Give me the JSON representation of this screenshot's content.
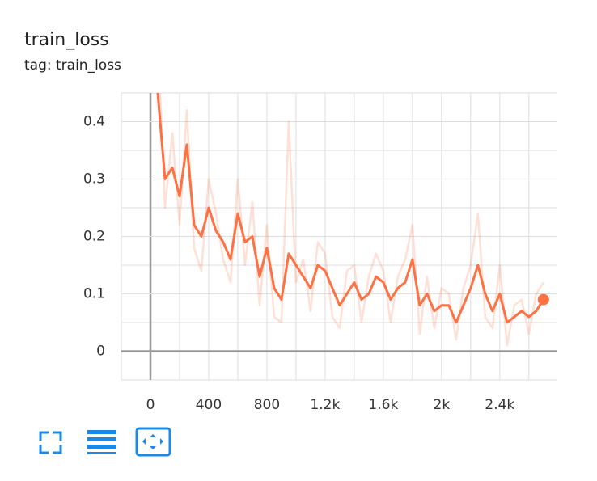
{
  "chart_data": {
    "type": "line",
    "title": "train_loss",
    "subtitle": "tag: train_loss",
    "x": [
      50,
      100,
      150,
      200,
      250,
      300,
      350,
      400,
      450,
      500,
      550,
      600,
      650,
      700,
      750,
      800,
      850,
      900,
      950,
      1000,
      1050,
      1100,
      1150,
      1200,
      1250,
      1300,
      1350,
      1400,
      1450,
      1500,
      1550,
      1600,
      1650,
      1700,
      1750,
      1800,
      1850,
      1900,
      1950,
      2000,
      2050,
      2100,
      2150,
      2200,
      2250,
      2300,
      2350,
      2400,
      2450,
      2500,
      2550,
      2600,
      2650,
      2700
    ],
    "series": [
      {
        "color": "#ff7043",
        "opacity": 0.22,
        "width": 2.5,
        "values": [
          0.55,
          0.25,
          0.38,
          0.22,
          0.42,
          0.18,
          0.14,
          0.3,
          0.24,
          0.16,
          0.12,
          0.3,
          0.15,
          0.26,
          0.08,
          0.22,
          0.06,
          0.05,
          0.4,
          0.12,
          0.16,
          0.07,
          0.19,
          0.17,
          0.06,
          0.04,
          0.14,
          0.15,
          0.05,
          0.13,
          0.17,
          0.14,
          0.05,
          0.13,
          0.16,
          0.22,
          0.03,
          0.13,
          0.04,
          0.11,
          0.1,
          0.02,
          0.11,
          0.15,
          0.24,
          0.06,
          0.04,
          0.15,
          0.01,
          0.08,
          0.09,
          0.03,
          0.1,
          0.12
        ]
      },
      {
        "color": "#ff7043",
        "opacity": 1,
        "width": 3,
        "end_dot": true,
        "values": [
          0.45,
          0.3,
          0.32,
          0.27,
          0.36,
          0.22,
          0.2,
          0.25,
          0.21,
          0.19,
          0.16,
          0.24,
          0.19,
          0.2,
          0.13,
          0.18,
          0.11,
          0.09,
          0.17,
          0.15,
          0.13,
          0.11,
          0.15,
          0.14,
          0.11,
          0.08,
          0.1,
          0.12,
          0.09,
          0.1,
          0.13,
          0.12,
          0.09,
          0.11,
          0.12,
          0.16,
          0.08,
          0.1,
          0.07,
          0.08,
          0.08,
          0.05,
          0.08,
          0.11,
          0.15,
          0.1,
          0.07,
          0.1,
          0.05,
          0.06,
          0.07,
          0.06,
          0.07,
          0.09
        ]
      }
    ],
    "xlim": [
      -200,
      2790
    ],
    "ylim": [
      -0.05,
      0.45
    ],
    "xticks": [
      0,
      400,
      800,
      {
        "value": 1200,
        "label": "1.2k"
      },
      {
        "value": 1600,
        "label": "1.6k"
      },
      {
        "value": 2000,
        "label": "2k"
      },
      {
        "value": 2400,
        "label": "2.4k"
      }
    ],
    "yticks": [
      0,
      0.1,
      0.2,
      0.3,
      0.4
    ],
    "xminorticks": [
      -200,
      200,
      600,
      1000,
      1400,
      1800,
      2200,
      2600
    ],
    "yminorticks": [
      -0.05,
      0.05,
      0.15,
      0.25,
      0.35,
      0.45
    ],
    "grid": true
  }
}
